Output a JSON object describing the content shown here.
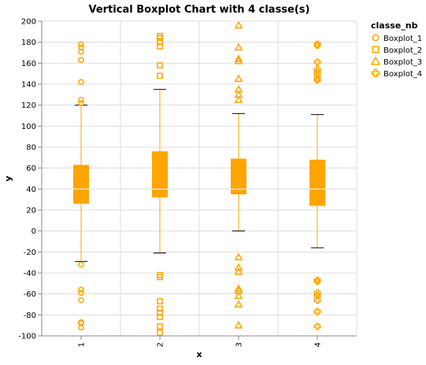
{
  "chart_data": {
    "type": "boxplot",
    "title": "Vertical Boxplot Chart with 4 classe(s)",
    "xlabel": "x",
    "ylabel": "y",
    "ylim": [
      -100,
      200
    ],
    "yticks": [
      -100,
      -80,
      -60,
      -40,
      -20,
      0,
      20,
      40,
      60,
      80,
      100,
      120,
      140,
      160,
      180,
      200
    ],
    "categories": [
      "1",
      "2",
      "3",
      "4"
    ],
    "grid": true,
    "legend": {
      "title": "classe_nb",
      "position": "top-right"
    },
    "color": "#FFA500",
    "series": [
      {
        "name": "Boxplot_1",
        "category": "1",
        "shape": "circle",
        "whisker_low": -29,
        "q1": 26,
        "median": 40,
        "q3": 63,
        "whisker_high": 120,
        "outliers": [
          178,
          175,
          171,
          163,
          142,
          125,
          122,
          -32,
          -56,
          -59,
          -66,
          -87,
          -88,
          -92
        ]
      },
      {
        "name": "Boxplot_2",
        "category": "2",
        "shape": "square",
        "whisker_low": -21,
        "q1": 32,
        "median": 40,
        "q3": 76,
        "whisker_high": 135,
        "outliers": [
          186,
          184,
          180,
          176,
          158,
          148,
          -42,
          -44,
          -67,
          -74,
          -78,
          -82,
          -91,
          -97
        ]
      },
      {
        "name": "Boxplot_3",
        "category": "3",
        "shape": "triangle",
        "whisker_low": 0,
        "q1": 35,
        "median": 40,
        "q3": 69,
        "whisker_high": 112,
        "outliers": [
          196,
          175,
          164,
          162,
          145,
          135,
          130,
          125,
          -25,
          -35,
          -39,
          -55,
          -57,
          -62,
          -70,
          -90
        ]
      },
      {
        "name": "Boxplot_4",
        "category": "4",
        "shape": "cross",
        "whisker_low": -16,
        "q1": 24,
        "median": 40,
        "q3": 68,
        "whisker_high": 111,
        "outliers": [
          178,
          177,
          161,
          154,
          151,
          149,
          145,
          144,
          -47,
          -48,
          -59,
          -62,
          -66,
          -77,
          -91
        ]
      }
    ]
  }
}
